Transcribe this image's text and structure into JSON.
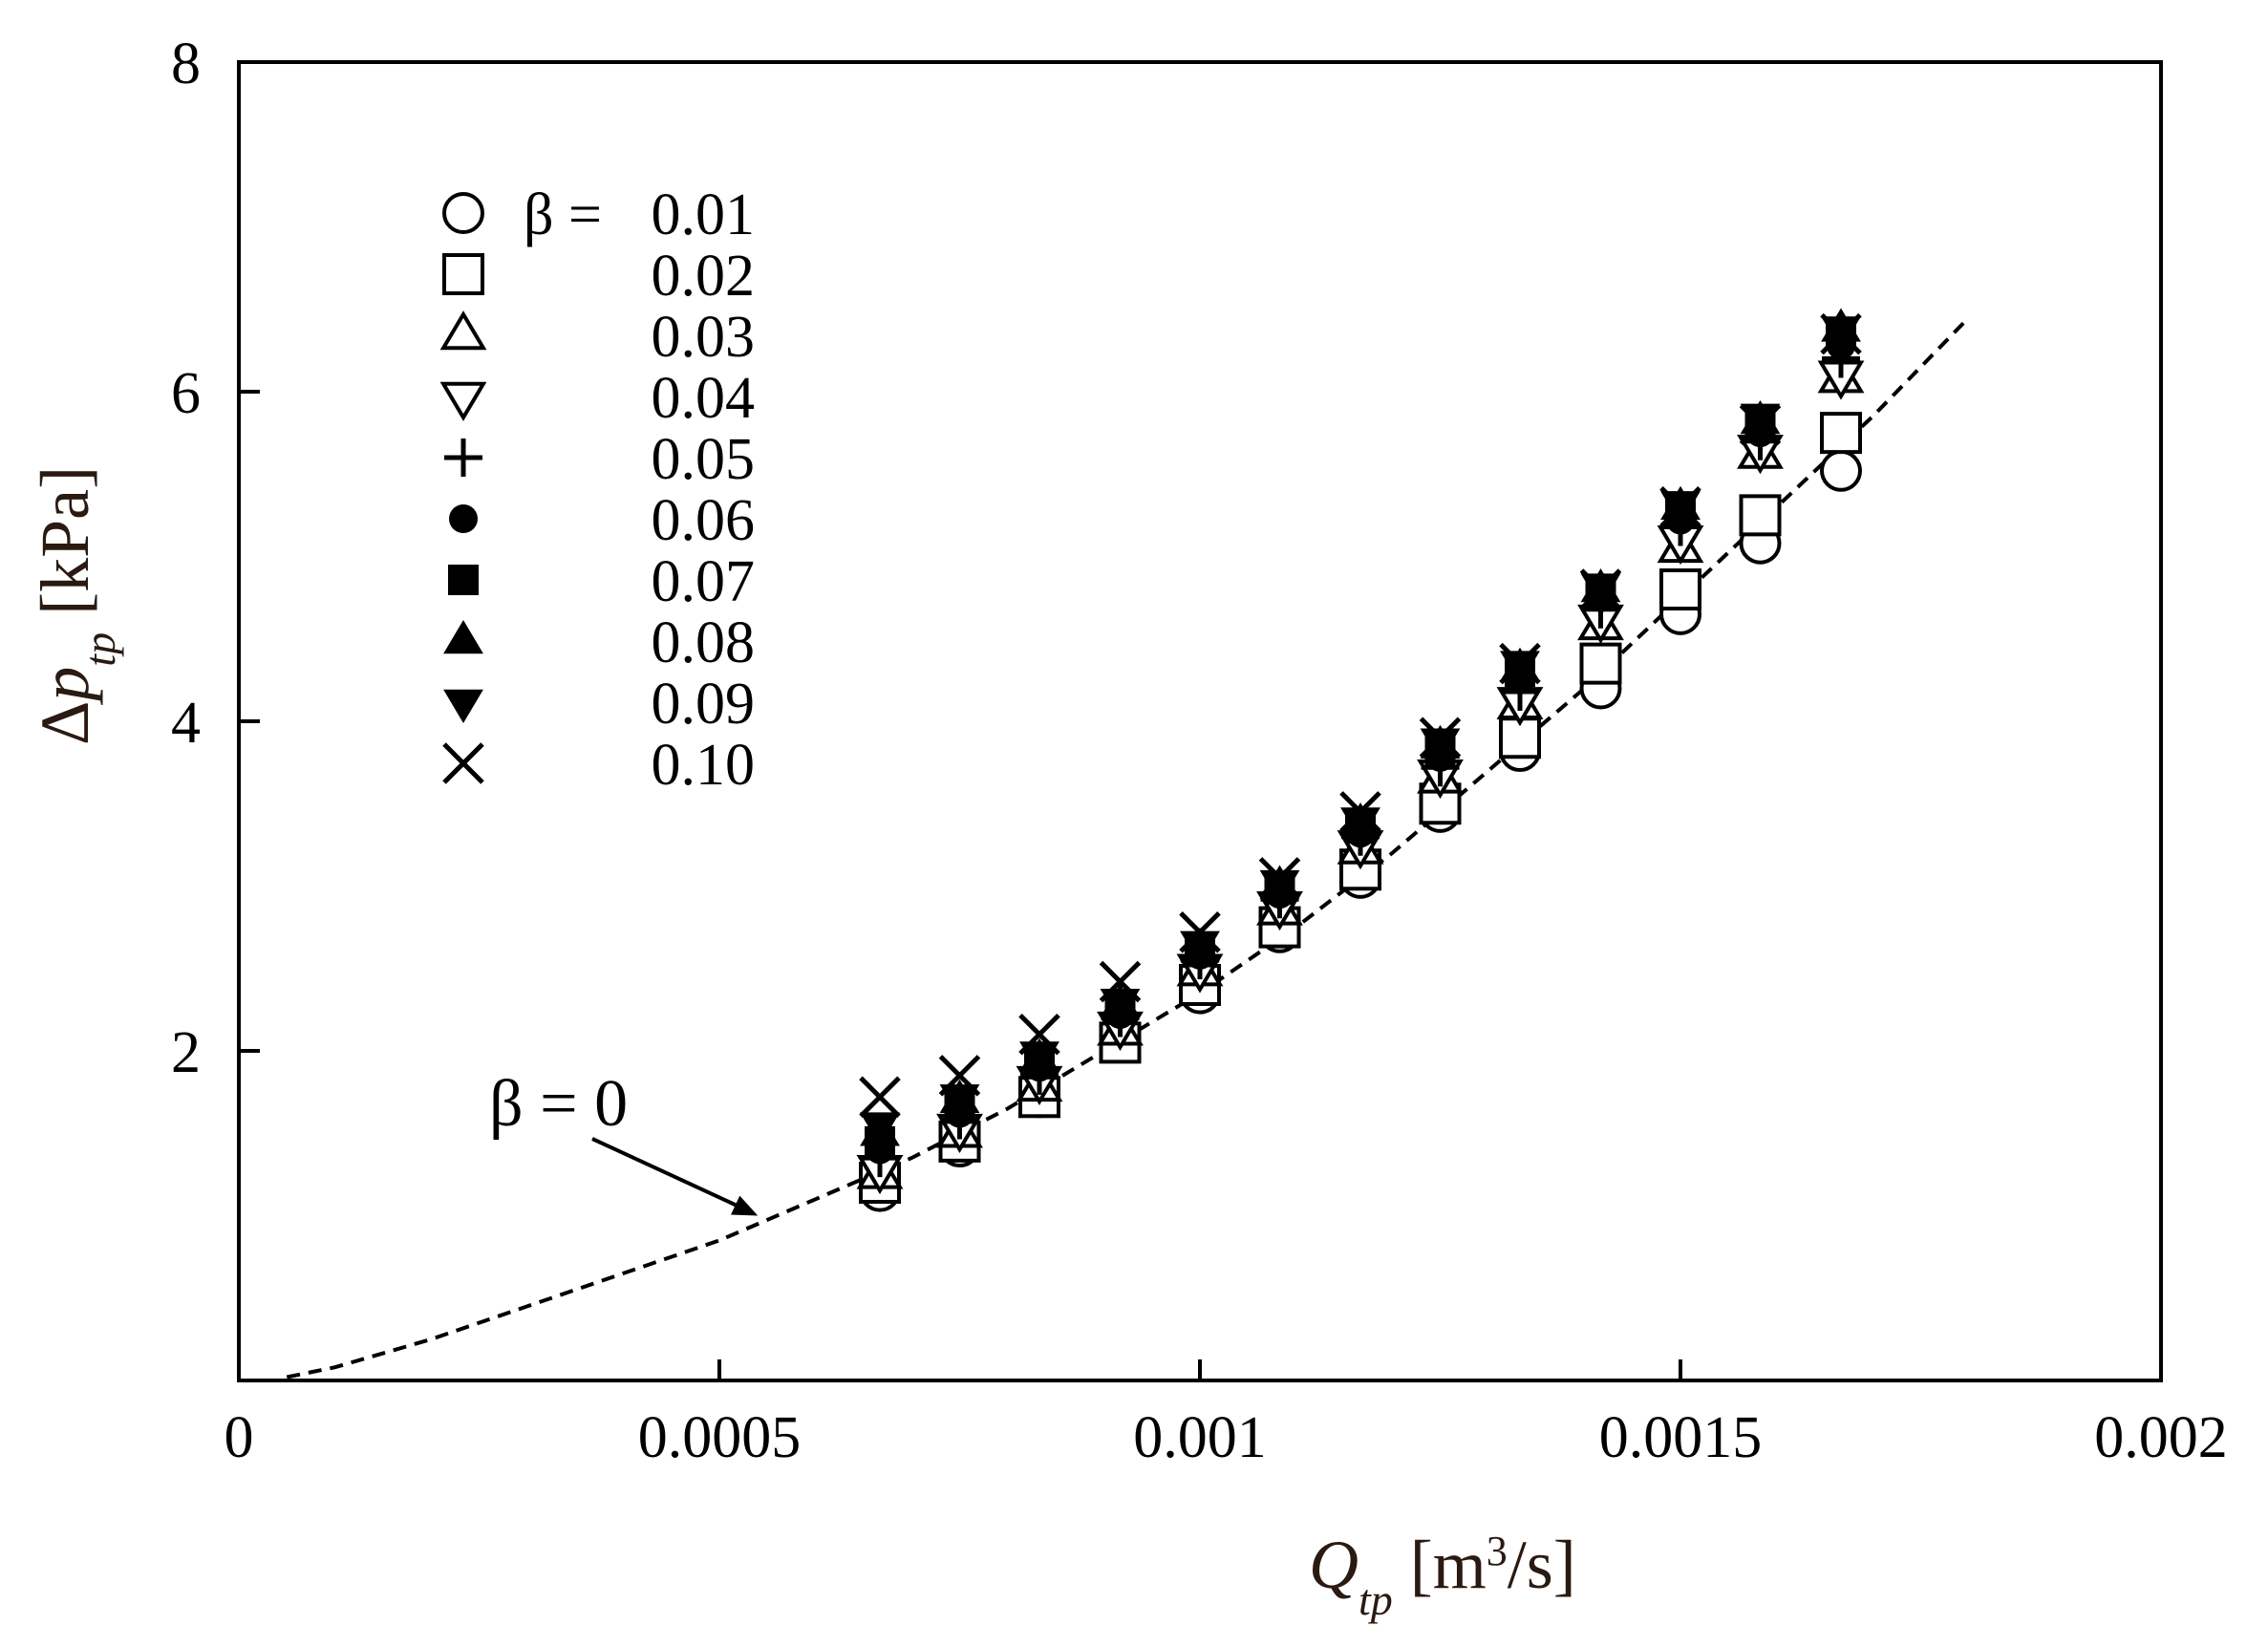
{
  "chart_data": {
    "type": "scatter",
    "xlabel": {
      "symbol": "Q",
      "subscript": "tp",
      "unit_prefix": " [m",
      "unit_sup": "3",
      "unit_suffix": "/s]"
    },
    "ylabel": {
      "prefix": "Δ",
      "symbol": "p",
      "subscript": "tp",
      "unit": " [kPa]"
    },
    "xlim": [
      0,
      0.002
    ],
    "ylim": [
      0,
      8
    ],
    "x_ticks": [
      0,
      0.0005,
      0.001,
      0.0015,
      0.002
    ],
    "x_tick_labels": [
      "0",
      "0.0005",
      "0.001",
      "0.0015",
      "0.002"
    ],
    "y_ticks": [
      2,
      4,
      6,
      8
    ],
    "y_tick_labels": [
      "2",
      "4",
      "6",
      "8"
    ],
    "grid": false,
    "legend_position": "top-left",
    "legend_title_prefix": "β = ",
    "x": [
      0.000667,
      0.00075,
      0.000833,
      0.000917,
      0.001,
      0.001083,
      0.001167,
      0.00125,
      0.001333,
      0.001417,
      0.0015,
      0.001583,
      0.001667
    ],
    "series": [
      {
        "name": "0.01",
        "marker": "circle-open",
        "values": [
          1.15,
          1.42,
          1.72,
          2.06,
          2.35,
          2.72,
          3.05,
          3.45,
          3.82,
          4.2,
          4.65,
          5.08,
          5.52
        ]
      },
      {
        "name": "0.02",
        "marker": "square-open",
        "values": [
          1.2,
          1.45,
          1.72,
          2.05,
          2.4,
          2.75,
          3.1,
          3.5,
          3.9,
          4.35,
          4.8,
          5.25,
          5.75
        ]
      },
      {
        "name": "0.03",
        "marker": "triangle-up-open",
        "values": [
          1.25,
          1.5,
          1.78,
          2.12,
          2.48,
          2.85,
          3.22,
          3.65,
          4.1,
          4.58,
          5.05,
          5.62,
          6.08
        ]
      },
      {
        "name": "0.04",
        "marker": "triangle-down-open",
        "values": [
          1.28,
          1.53,
          1.82,
          2.15,
          2.5,
          2.88,
          3.25,
          3.68,
          4.12,
          4.62,
          5.1,
          5.65,
          6.1
        ]
      },
      {
        "name": "0.05",
        "marker": "plus",
        "values": [
          1.35,
          1.58,
          1.85,
          2.2,
          2.55,
          2.92,
          3.3,
          3.72,
          4.18,
          4.68,
          5.18,
          5.7,
          6.2
        ]
      },
      {
        "name": "0.06",
        "marker": "circle-filled",
        "values": [
          1.4,
          1.62,
          1.9,
          2.22,
          2.58,
          2.95,
          3.32,
          3.78,
          4.25,
          4.75,
          5.22,
          5.75,
          6.28
        ]
      },
      {
        "name": "0.07",
        "marker": "square-filled",
        "values": [
          1.45,
          1.65,
          1.92,
          2.25,
          2.6,
          2.98,
          3.35,
          3.82,
          4.3,
          4.78,
          5.28,
          5.8,
          6.35
        ]
      },
      {
        "name": "0.08",
        "marker": "triangle-up-filled",
        "values": [
          1.5,
          1.7,
          1.95,
          2.28,
          2.62,
          3.0,
          3.38,
          3.85,
          4.32,
          4.8,
          5.3,
          5.82,
          6.38
        ]
      },
      {
        "name": "0.09",
        "marker": "triangle-down-filled",
        "values": [
          1.55,
          1.72,
          1.98,
          2.3,
          2.65,
          3.02,
          3.4,
          3.88,
          4.35,
          4.82,
          5.32,
          5.85,
          6.38
        ]
      },
      {
        "name": "0.10",
        "marker": "cross",
        "values": [
          1.72,
          1.85,
          2.1,
          2.42,
          2.72,
          3.05,
          3.45,
          3.9,
          4.35,
          4.8,
          5.3,
          5.8,
          6.35
        ]
      }
    ],
    "reference_curve": {
      "name": "β = 0",
      "style": "dashed",
      "x": [
        5e-05,
        0.0001,
        0.0002,
        0.0003,
        0.0004,
        0.0005,
        0.0006,
        0.0007,
        0.0008,
        0.0009,
        0.001,
        0.0011,
        0.0012,
        0.0013,
        0.0014,
        0.0015,
        0.0016,
        0.0017,
        0.0018
      ],
      "y": [
        0.02,
        0.08,
        0.25,
        0.45,
        0.65,
        0.85,
        1.1,
        1.35,
        1.65,
        2.0,
        2.35,
        2.75,
        3.2,
        3.7,
        4.2,
        4.75,
        5.3,
        5.85,
        6.45
      ]
    },
    "annotation": {
      "text": "β = 0",
      "arrow_target": {
        "x": 0.00054,
        "y": 1.0
      }
    }
  }
}
